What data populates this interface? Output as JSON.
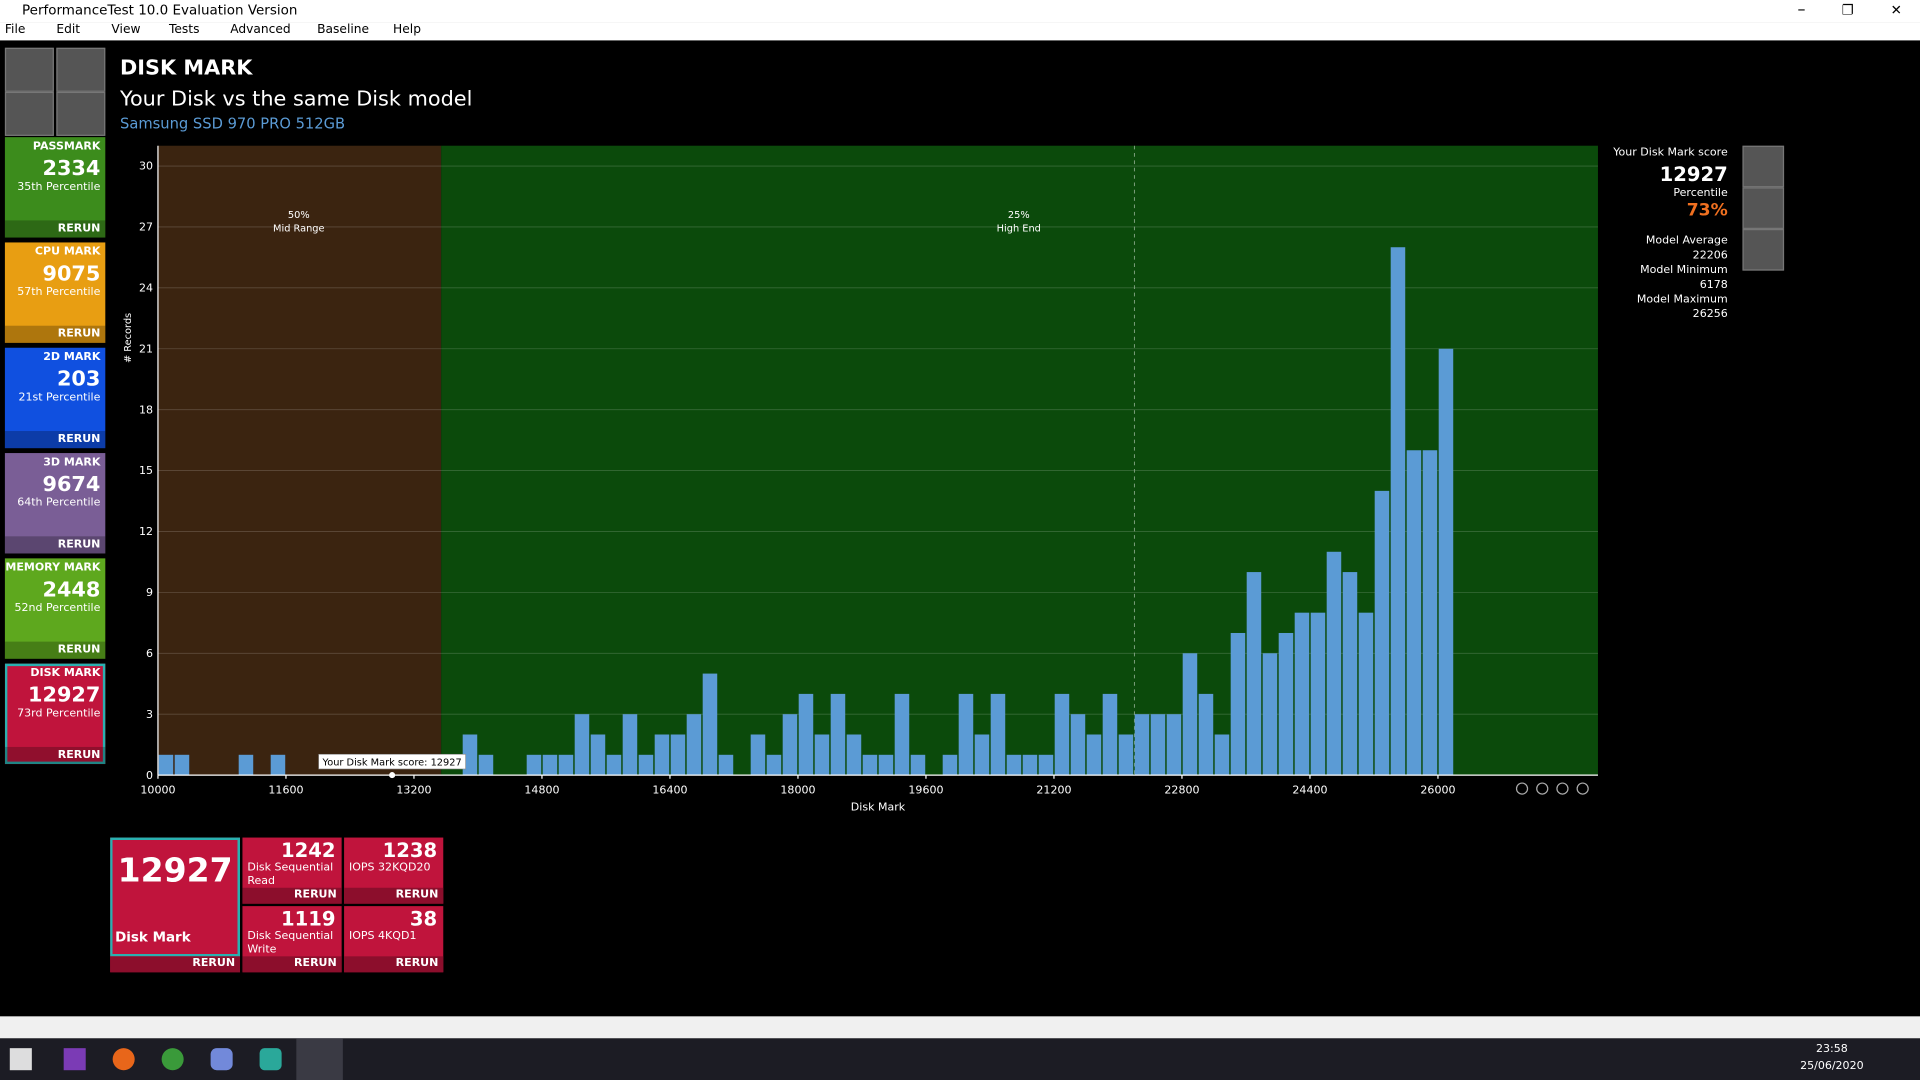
{
  "window": {
    "title": "PerformanceTest 10.0 Evaluation Version"
  },
  "menu": [
    "File",
    "Edit",
    "View",
    "Tests",
    "Advanced",
    "Baseline",
    "Help"
  ],
  "sidebar": [
    {
      "name": "PASSMARK",
      "score": 2334,
      "percentile": "35th Percentile",
      "action": "RERUN",
      "color": "#3c8c1c"
    },
    {
      "name": "CPU MARK",
      "score": 9075,
      "percentile": "57th Percentile",
      "action": "RERUN",
      "color": "#e89e12"
    },
    {
      "name": "2D MARK",
      "score": 203,
      "percentile": "21st Percentile",
      "action": "RERUN",
      "color": "#1050e0"
    },
    {
      "name": "3D MARK",
      "score": 9674,
      "percentile": "64th Percentile",
      "action": "RERUN",
      "color": "#7a5e96"
    },
    {
      "name": "MEMORY MARK",
      "score": 2448,
      "percentile": "52nd Percentile",
      "action": "RERUN",
      "color": "#5ea81e"
    },
    {
      "name": "DISK MARK",
      "score": 12927,
      "percentile": "73rd Percentile",
      "action": "RERUN",
      "color": "#c0143c"
    }
  ],
  "header": {
    "title": "DISK MARK",
    "subtitle": "Your Disk vs the same Disk model",
    "model": "Samsung SSD 970 PRO 512GB"
  },
  "chart_data": {
    "type": "histogram",
    "x_label": "Disk Mark",
    "y_label": "# Records",
    "color": "#5b9bd5",
    "bins": [
      10000,
      10200,
      10400,
      10600,
      10800,
      11000,
      11200,
      11400,
      11600,
      11800,
      12000,
      12200,
      12400,
      12600,
      12800,
      13000,
      13200,
      13400,
      13600,
      13800,
      14000,
      14200,
      14400,
      14600,
      14800,
      15000,
      15200,
      15400,
      15600,
      15800,
      16000,
      16200,
      16400,
      16600,
      16800,
      17000,
      17200,
      17400,
      17600,
      17800,
      18000,
      18200,
      18400,
      18600,
      18800,
      19000,
      19200,
      19400,
      19600,
      19800,
      20000,
      20200,
      20400,
      20600,
      20800,
      21000,
      21200,
      21400,
      21600,
      21800,
      22000,
      22200,
      22400,
      22600,
      22800,
      23000,
      23200,
      23400,
      23600,
      23800,
      24000,
      24200,
      24400,
      24600,
      24800,
      25000,
      25200,
      25400,
      25600,
      25800,
      26000,
      26200
    ],
    "values": [
      1,
      1,
      0,
      0,
      0,
      1,
      0,
      1,
      0,
      0,
      0,
      0,
      0,
      0,
      0,
      0,
      0,
      0,
      0,
      2,
      1,
      0,
      0,
      1,
      1,
      1,
      3,
      2,
      1,
      3,
      1,
      2,
      2,
      3,
      5,
      1,
      0,
      2,
      1,
      3,
      4,
      2,
      4,
      2,
      1,
      1,
      4,
      1,
      0,
      1,
      4,
      2,
      4,
      1,
      1,
      1,
      4,
      3,
      2,
      4,
      2,
      3,
      3,
      3,
      6,
      4,
      2,
      7,
      10,
      6,
      7,
      8,
      8,
      11,
      10,
      8,
      14,
      26,
      16,
      16,
      21
    ],
    "xlim": [
      10000,
      28000
    ],
    "xticks": [
      10000,
      11600,
      13200,
      14800,
      16400,
      18000,
      19600,
      21200,
      22800,
      24400,
      26000
    ],
    "ylim": [
      0,
      31
    ],
    "yticks": [
      0,
      3,
      6,
      9,
      12,
      15,
      18,
      21,
      24,
      27,
      30
    ],
    "grid": true,
    "regions": [
      {
        "label": "50%",
        "sublabel": "Mid Range",
        "from": 10000,
        "to": 13540,
        "color": "#3b2410"
      },
      {
        "label": "25%",
        "sublabel": "High End",
        "from": 13540,
        "to": 28000,
        "color": "#0b4a0b"
      }
    ],
    "marker": {
      "label": "Your Disk Mark score: 12927",
      "value": 12927
    }
  },
  "summary": {
    "score_label": "Your Disk Mark score",
    "score": 12927,
    "percentile_label": "Percentile",
    "percentile": {
      "value": 73,
      "label": "73%"
    },
    "stats": [
      {
        "label": "Model Average",
        "value": 22206
      },
      {
        "label": "Model Minimum",
        "value": 6178
      },
      {
        "label": "Model Maximum",
        "value": 26256
      }
    ]
  },
  "results": {
    "main": {
      "score": 12927,
      "name": "Disk Mark",
      "action": "RERUN"
    },
    "tests": [
      {
        "score": 1242,
        "name": "Disk Sequential Read",
        "action": "RERUN"
      },
      {
        "score": 1238,
        "name": "IOPS 32KQD20",
        "action": "RERUN"
      },
      {
        "score": 1119,
        "name": "Disk Sequential Write",
        "action": "RERUN"
      },
      {
        "score": 38,
        "name": "IOPS 4KQD1",
        "action": "RERUN"
      }
    ]
  },
  "taskbar": {
    "time": "23:58",
    "date": "25/06/2020"
  }
}
